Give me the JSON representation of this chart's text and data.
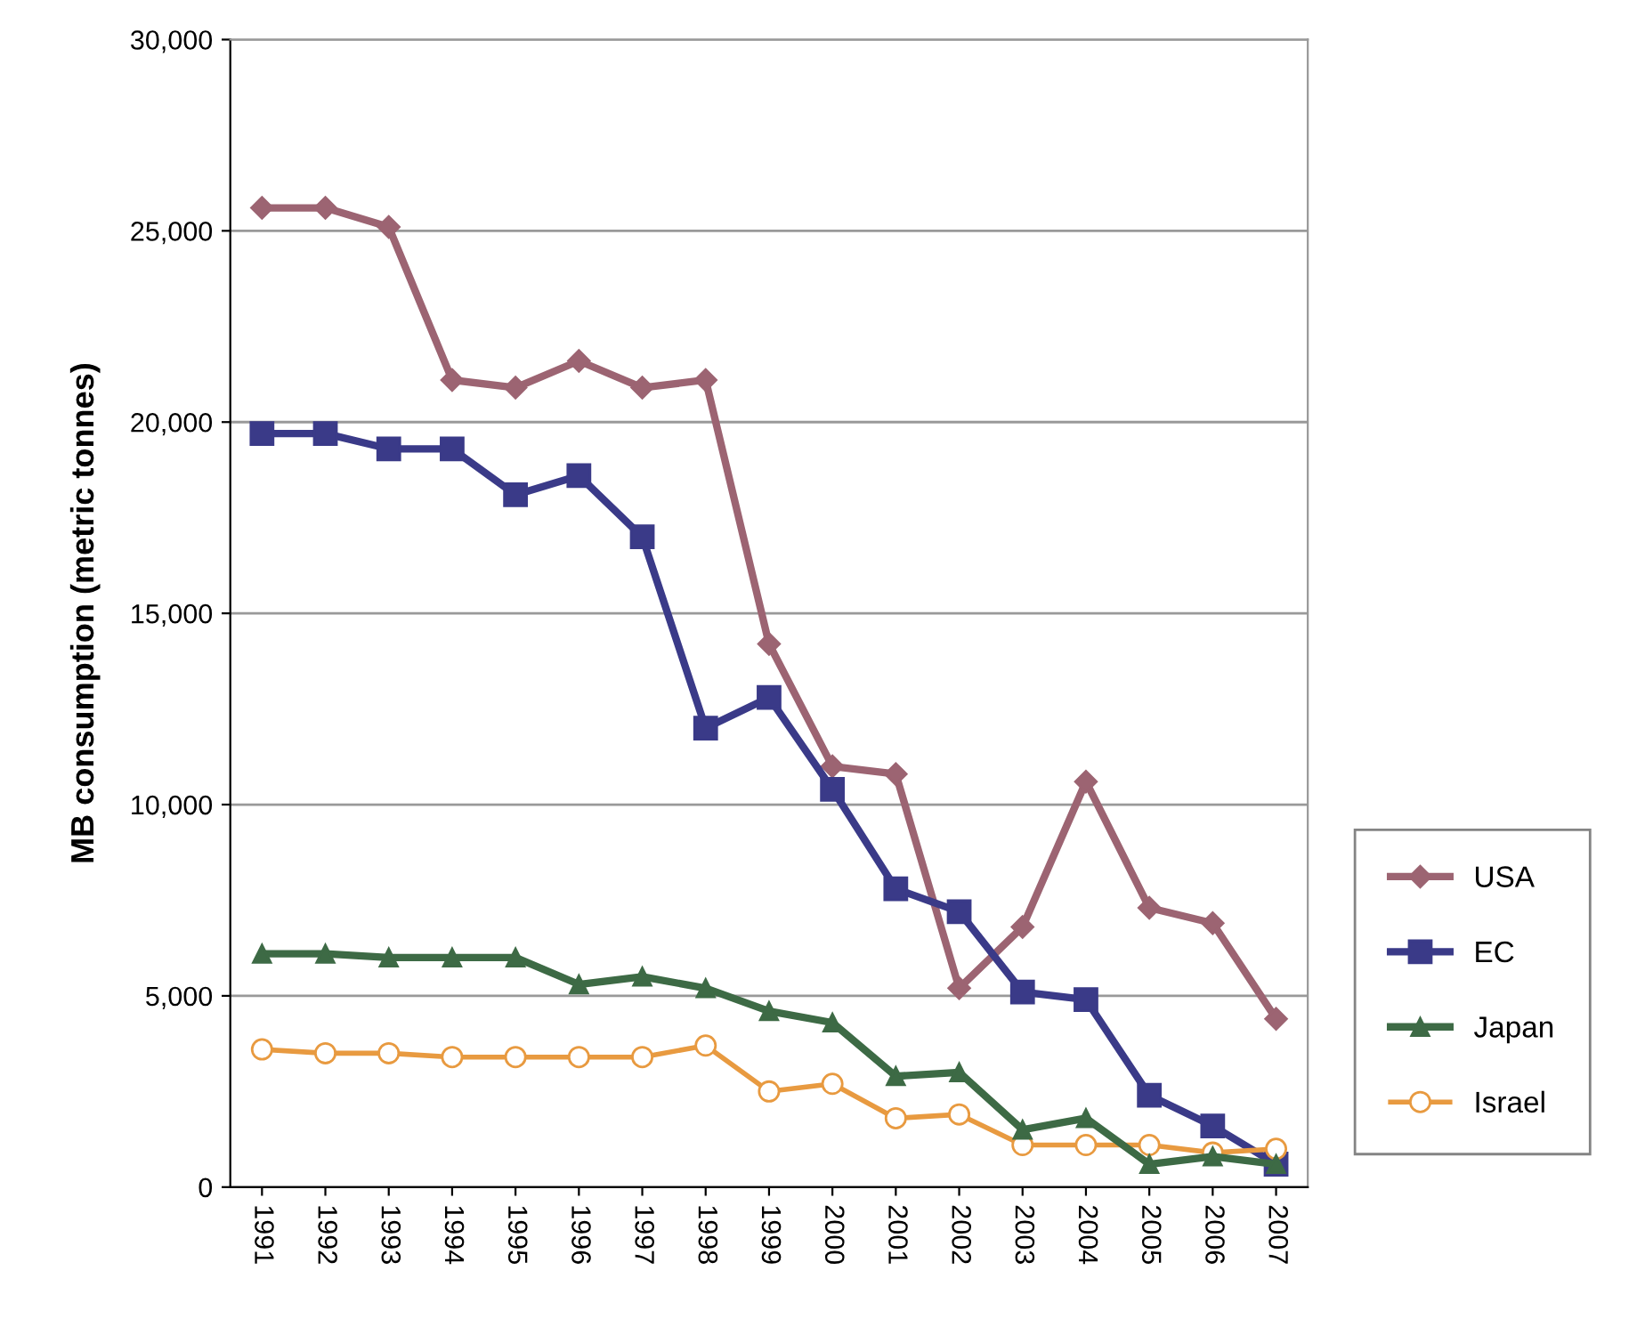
{
  "chart_data": {
    "type": "line",
    "ylabel": "MB consumption (metric tonnes)",
    "x": [
      "1991",
      "1992",
      "1993",
      "1994",
      "1995",
      "1996",
      "1997",
      "1998",
      "1999",
      "2000",
      "2001",
      "2002",
      "2003",
      "2004",
      "2005",
      "2006",
      "2007"
    ],
    "ylim": [
      0,
      30000
    ],
    "yticks": [
      {
        "value": 0,
        "label": "0"
      },
      {
        "value": 5000,
        "label": "5,000"
      },
      {
        "value": 10000,
        "label": "10,000"
      },
      {
        "value": 15000,
        "label": "15,000"
      },
      {
        "value": 20000,
        "label": "20,000"
      },
      {
        "value": 25000,
        "label": "25,000"
      },
      {
        "value": 30000,
        "label": "30,000"
      }
    ],
    "grid": "y",
    "legend": "right",
    "series": [
      {
        "name": "USA",
        "color": "#9c6472",
        "marker": "diamond",
        "values": [
          25600,
          25600,
          25100,
          21100,
          20900,
          21600,
          20900,
          21100,
          14200,
          11000,
          10800,
          5200,
          6800,
          10600,
          7300,
          6900,
          4400
        ]
      },
      {
        "name": "EC",
        "color": "#3a3a88",
        "marker": "square",
        "values": [
          19700,
          19700,
          19300,
          19300,
          18100,
          18600,
          17000,
          12000,
          12800,
          10400,
          7800,
          7200,
          5100,
          4900,
          2400,
          1600,
          600
        ]
      },
      {
        "name": "Japan",
        "color": "#3d6a45",
        "marker": "triangle",
        "values": [
          6100,
          6100,
          6000,
          6000,
          6000,
          5300,
          5500,
          5200,
          4600,
          4300,
          2900,
          3000,
          1500,
          1800,
          600,
          800,
          600
        ]
      },
      {
        "name": "Israel",
        "color": "#e89a40",
        "marker": "circle",
        "values": [
          3600,
          3500,
          3500,
          3400,
          3400,
          3400,
          3400,
          3700,
          2500,
          2700,
          1800,
          1900,
          1100,
          1100,
          1100,
          900,
          1000
        ]
      }
    ]
  }
}
